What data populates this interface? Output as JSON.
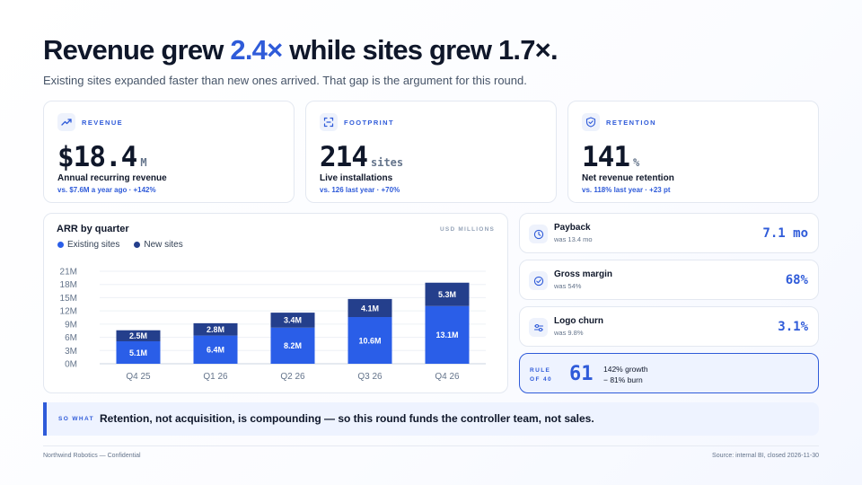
{
  "header": {
    "title_part1": "Revenue grew ",
    "title_accent": "2.4×",
    "title_part2": " while sites grew 1.7×.",
    "subtitle": "Existing sites expanded faster than new ones arrived. That gap is the argument for this round."
  },
  "kpis": [
    {
      "icon": "trend-up-icon",
      "label": "REVENUE",
      "value": "$18.4",
      "unit": "M",
      "description": "Annual recurring revenue",
      "delta": "vs. $7.6M a year ago · +142%"
    },
    {
      "icon": "frame-corners-icon",
      "label": "FOOTPRINT",
      "value": "214",
      "unit": "sites",
      "description": "Live installations",
      "delta": "vs. 126 last year · +70%"
    },
    {
      "icon": "shield-check-icon",
      "label": "RETENTION",
      "value": "141",
      "unit": "%",
      "description": "Net revenue retention",
      "delta": "vs. 118% last year · +23 pt"
    }
  ],
  "chart_data": {
    "type": "bar",
    "stacked": true,
    "title": "ARR by quarter",
    "units_label": "USD MILLIONS",
    "categories": [
      "Q4 25",
      "Q1 26",
      "Q2 26",
      "Q3 26",
      "Q4 26"
    ],
    "series": [
      {
        "name": "Existing sites",
        "color": "#2a5ee8",
        "values": [
          5.1,
          6.4,
          8.2,
          10.6,
          13.1
        ],
        "labels": [
          "5.1M",
          "6.4M",
          "8.2M",
          "10.6M",
          "13.1M"
        ]
      },
      {
        "name": "New sites",
        "color": "#243f8c",
        "values": [
          2.5,
          2.8,
          3.4,
          4.1,
          5.3
        ],
        "labels": [
          "2.5M",
          "2.8M",
          "3.4M",
          "4.1M",
          "5.3M"
        ]
      }
    ],
    "ylim": [
      0,
      21
    ],
    "yticks": [
      0,
      3,
      6,
      9,
      12,
      15,
      18,
      21
    ],
    "ytick_labels": [
      "0M",
      "3M",
      "6M",
      "9M",
      "12M",
      "15M",
      "18M",
      "21M"
    ],
    "grid": true,
    "legend": "top-left"
  },
  "metrics": [
    {
      "icon": "clock-icon",
      "label": "Payback",
      "sub": "was 13.4 mo",
      "value": "7.1 mo"
    },
    {
      "icon": "check-circle-icon",
      "label": "Gross margin",
      "sub": "was 54%",
      "value": "68%"
    },
    {
      "icon": "sliders-icon",
      "label": "Logo churn",
      "sub": "was 9.8%",
      "value": "3.1%"
    }
  ],
  "rule_of_40": {
    "label": "RULE OF 40",
    "value": "61",
    "line1": "142% growth",
    "line2": "− 81% burn"
  },
  "so_what": {
    "label": "SO WHAT",
    "text": "Retention, not acquisition, is compounding — so this round funds the controller team, not sales."
  },
  "footer": {
    "left": "Northwind Robotics — Confidential",
    "right": "Source: internal BI, closed 2026-11-30"
  },
  "colors": {
    "accent": "#2f5bd9",
    "existing": "#2a5ee8",
    "new": "#243f8c"
  }
}
